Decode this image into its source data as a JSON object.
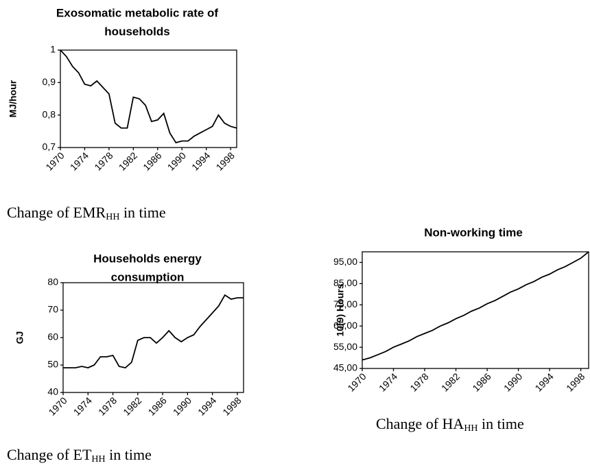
{
  "chart_data": [
    {
      "type": "line",
      "title": [
        "Exosomatic metabolic rate of",
        "households"
      ],
      "ylabel": "MJ/hour",
      "x": [
        1970,
        1971,
        1972,
        1973,
        1974,
        1975,
        1976,
        1977,
        1978,
        1979,
        1980,
        1981,
        1982,
        1983,
        1984,
        1985,
        1986,
        1987,
        1988,
        1989,
        1990,
        1991,
        1992,
        1993,
        1994,
        1995,
        1996,
        1997,
        1998,
        1999
      ],
      "series": [
        {
          "color": "#000000",
          "values": [
            1.0,
            0.98,
            0.95,
            0.93,
            0.895,
            0.89,
            0.905,
            0.885,
            0.865,
            0.775,
            0.76,
            0.76,
            0.855,
            0.85,
            0.83,
            0.78,
            0.785,
            0.805,
            0.745,
            0.715,
            0.72,
            0.72,
            0.735,
            0.745,
            0.755,
            0.765,
            0.8,
            0.775,
            0.765,
            0.76
          ]
        }
      ],
      "xlim": [
        1970,
        1999
      ],
      "xticks": [
        1970,
        1974,
        1978,
        1982,
        1986,
        1990,
        1994,
        1998
      ],
      "ylim": [
        0.7,
        1
      ],
      "yticks": [
        {
          "value": 0.7,
          "label": "0,7"
        },
        {
          "value": 0.8,
          "label": "0,8"
        },
        {
          "value": 0.9,
          "label": "0,9"
        },
        1
      ],
      "caption": {
        "text": "Change of EMR",
        "sub": "HH",
        "tail": " in time"
      }
    },
    {
      "type": "line",
      "title": [
        "Households energy",
        "consumption"
      ],
      "ylabel": "GJ",
      "x": [
        1970,
        1971,
        1972,
        1973,
        1974,
        1975,
        1976,
        1977,
        1978,
        1979,
        1980,
        1981,
        1982,
        1983,
        1984,
        1985,
        1986,
        1987,
        1988,
        1989,
        1990,
        1991,
        1992,
        1993,
        1994,
        1995,
        1996,
        1997,
        1998,
        1999
      ],
      "series": [
        {
          "color": "#000000",
          "values": [
            49,
            49,
            49,
            49.5,
            49,
            50,
            53,
            53,
            53.5,
            49.5,
            49,
            51,
            59,
            60,
            60,
            58,
            60,
            62.5,
            60,
            58.5,
            60,
            61,
            64,
            66.5,
            69,
            71.5,
            75.5,
            74,
            74.5,
            74.5
          ]
        }
      ],
      "xlim": [
        1970,
        1999
      ],
      "xticks": [
        1970,
        1974,
        1978,
        1982,
        1986,
        1990,
        1994,
        1998
      ],
      "ylim": [
        40,
        80
      ],
      "yticks": [
        40,
        50,
        60,
        70,
        80
      ],
      "caption": {
        "text": "Change of ET",
        "sub": "HH",
        "tail": " in time"
      }
    },
    {
      "type": "line",
      "title": [
        "Non-working time"
      ],
      "ylabel": "10(9) Hours",
      "x": [
        1970,
        1971,
        1972,
        1973,
        1974,
        1975,
        1976,
        1977,
        1978,
        1979,
        1980,
        1981,
        1982,
        1983,
        1984,
        1985,
        1986,
        1987,
        1988,
        1989,
        1990,
        1991,
        1992,
        1993,
        1994,
        1995,
        1996,
        1997,
        1998,
        1999
      ],
      "series": [
        {
          "color": "#000000",
          "values": [
            49,
            50,
            51.5,
            53,
            55,
            56.5,
            58,
            60,
            61.5,
            63,
            65,
            66.5,
            68.5,
            70,
            72,
            73.5,
            75.5,
            77,
            79,
            81,
            82.5,
            84.5,
            86,
            88,
            89.5,
            91.5,
            93,
            95,
            97,
            100
          ]
        }
      ],
      "xlim": [
        1970,
        1999
      ],
      "xticks": [
        1970,
        1974,
        1978,
        1982,
        1986,
        1990,
        1994,
        1998
      ],
      "ylim": [
        45,
        100
      ],
      "yticks": [
        {
          "value": 45,
          "label": "45,00"
        },
        {
          "value": 55,
          "label": "55,00"
        },
        {
          "value": 65,
          "label": "65,00"
        },
        {
          "value": 75,
          "label": "75,00"
        },
        {
          "value": 85,
          "label": "85,00"
        },
        {
          "value": 95,
          "label": "95,00"
        }
      ],
      "caption": {
        "text": "Change of HA",
        "sub": "HH",
        "tail": " in time"
      }
    }
  ]
}
